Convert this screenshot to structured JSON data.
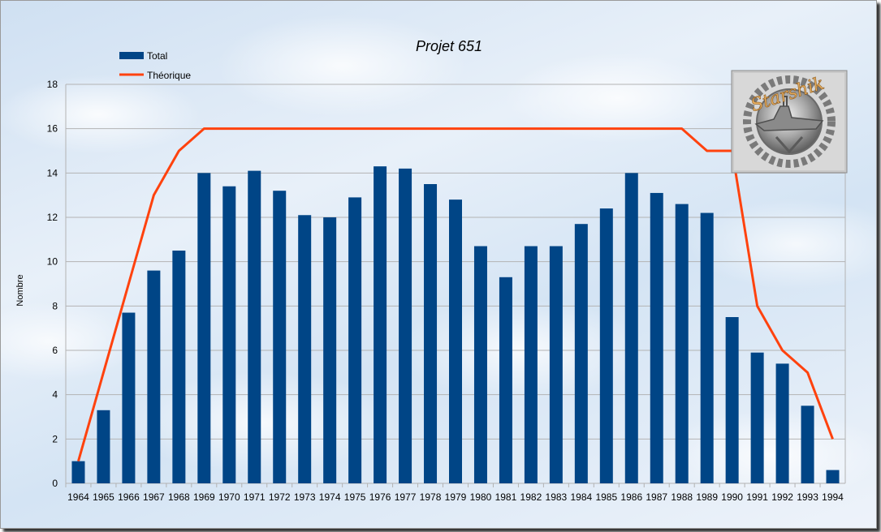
{
  "chart_data": {
    "type": "bar",
    "title": "Projet 651",
    "xlabel": "",
    "ylabel": "Nombre",
    "ylim": [
      0,
      18
    ],
    "yticks": [
      0,
      2,
      4,
      6,
      8,
      10,
      12,
      14,
      16,
      18
    ],
    "grid": true,
    "legend_position": "top-left",
    "categories": [
      "1964",
      "1965",
      "1966",
      "1967",
      "1968",
      "1969",
      "1970",
      "1971",
      "1972",
      "1973",
      "1974",
      "1975",
      "1976",
      "1977",
      "1978",
      "1979",
      "1980",
      "1981",
      "1982",
      "1983",
      "1984",
      "1985",
      "1986",
      "1987",
      "1988",
      "1989",
      "1990",
      "1991",
      "1992",
      "1993",
      "1994"
    ],
    "series": [
      {
        "name": "Total",
        "type": "bar",
        "color": "#004586",
        "values": [
          1,
          3.3,
          7.7,
          9.6,
          10.5,
          14,
          13.4,
          14.1,
          13.2,
          12.1,
          12,
          12.9,
          14.3,
          14.2,
          13.5,
          12.8,
          10.7,
          9.3,
          10.7,
          10.7,
          11.7,
          12.4,
          14,
          13.1,
          12.6,
          12.2,
          7.5,
          5.9,
          5.4,
          3.5,
          0.6
        ]
      },
      {
        "name": "Théorique",
        "type": "line",
        "color": "#ff420e",
        "values": [
          1,
          5,
          9,
          13,
          15,
          16,
          16,
          16,
          16,
          16,
          16,
          16,
          16,
          16,
          16,
          16,
          16,
          16,
          16,
          16,
          16,
          16,
          16,
          16,
          16,
          15,
          15,
          8,
          6,
          5,
          2
        ]
      }
    ]
  },
  "badge": {
    "text": "Starshik",
    "icon": "submarine-badge-icon"
  }
}
